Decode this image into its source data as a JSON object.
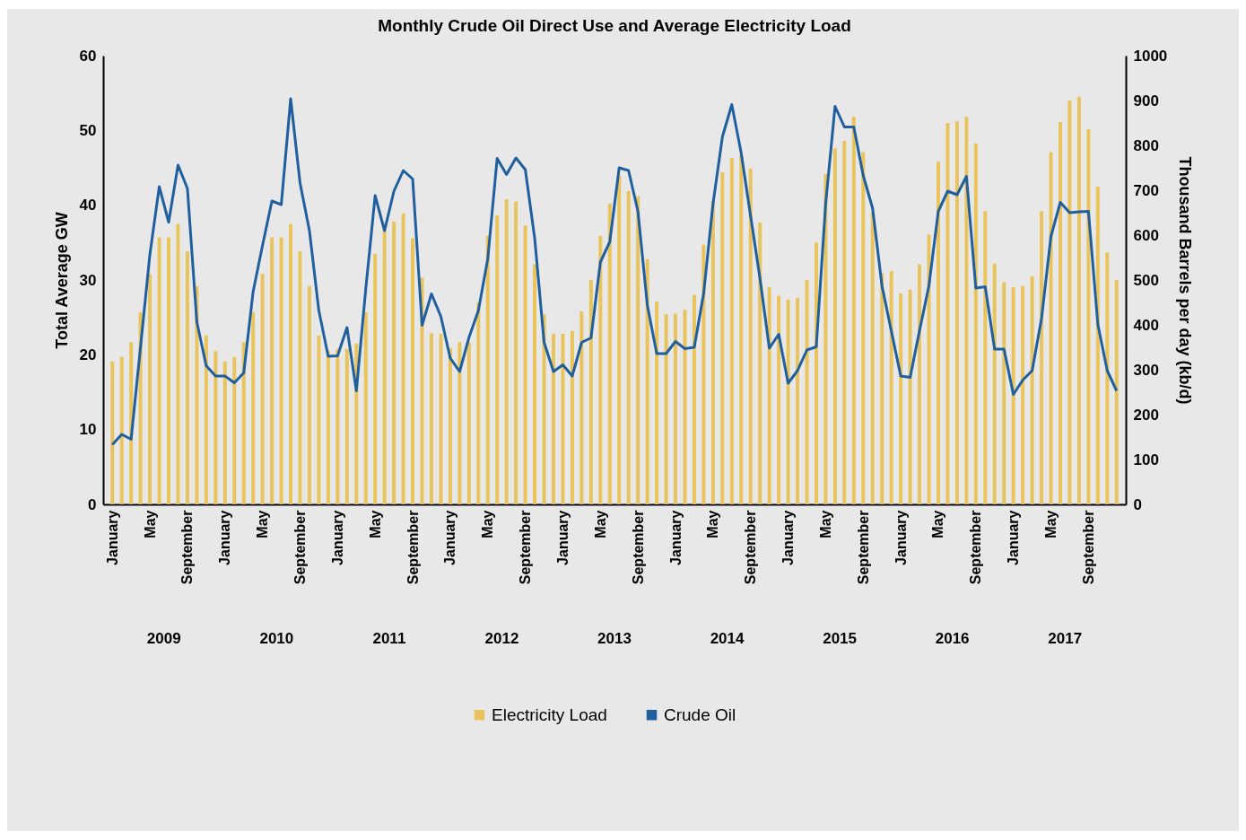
{
  "chart_data": {
    "type": "bar",
    "title": "Monthly Crude Oil Direct Use and Average Electricity Load",
    "ylabel": "Total Average GW",
    "y2label": "Thousand Barrels per day (kb/d)",
    "categories": [
      "January",
      null,
      null,
      null,
      "May",
      null,
      null,
      null,
      "September",
      null,
      null,
      null,
      "January",
      null,
      null,
      null,
      "May",
      null,
      null,
      null,
      "September",
      null,
      null,
      null,
      "January",
      null,
      null,
      null,
      "May",
      null,
      null,
      null,
      "September",
      null,
      null,
      null,
      "January",
      null,
      null,
      null,
      "May",
      null,
      null,
      null,
      "September",
      null,
      null,
      null,
      "January",
      null,
      null,
      null,
      "May",
      null,
      null,
      null,
      "September",
      null,
      null,
      null,
      "January",
      null,
      null,
      null,
      "May",
      null,
      null,
      null,
      "September",
      null,
      null,
      null,
      "January",
      null,
      null,
      null,
      "May",
      null,
      null,
      null,
      "September",
      null,
      null,
      null,
      "January",
      null,
      null,
      null,
      "May",
      null,
      null,
      null,
      "September",
      null,
      null,
      null,
      "January",
      null,
      null,
      null,
      "May",
      null,
      null,
      null,
      "September",
      null,
      null,
      null
    ],
    "series": [
      {
        "name": "Electricity Load",
        "color": "#e9c45c",
        "values": [
          19.1,
          19.7,
          21.7,
          25.7,
          30.8,
          35.7,
          35.7,
          37.5,
          33.8,
          29.2,
          22.6,
          20.5,
          19.1,
          19.7,
          21.7,
          25.7,
          30.8,
          35.7,
          35.7,
          37.5,
          33.8,
          29.2,
          22.6,
          20.5,
          20.8,
          20.8,
          21.5,
          25.7,
          33.5,
          36.6,
          37.8,
          38.9,
          35.6,
          30.3,
          22.9,
          22.8,
          20.9,
          21.7,
          21.7,
          27.0,
          35.9,
          38.6,
          40.8,
          40.5,
          37.3,
          32.1,
          25.4,
          22.8,
          22.8,
          23.2,
          25.8,
          30.0,
          35.9,
          40.2,
          44.0,
          41.9,
          41.2,
          32.8,
          27.1,
          25.4,
          25.5,
          26.0,
          28.0,
          34.7,
          40.5,
          44.4,
          46.3,
          46.7,
          44.9,
          37.7,
          29.0,
          27.9,
          27.4,
          27.6,
          30.0,
          35.0,
          44.2,
          47.6,
          48.6,
          51.8,
          47.1,
          39.0,
          30.9,
          31.2,
          28.2,
          28.7,
          32.1,
          36.1,
          45.8,
          51.0,
          51.2,
          51.8,
          48.3,
          39.2,
          32.2,
          29.7,
          29.0,
          29.2,
          30.5,
          39.2,
          47.1,
          51.1,
          54.0,
          54.5,
          50.2,
          42.5,
          33.7,
          30.0
        ]
      },
      {
        "name": "Crude Oil",
        "type": "line",
        "axis": "y2",
        "color": "#1f5f9e",
        "values": [
          133,
          156,
          145,
          350,
          557,
          708,
          629,
          756,
          704,
          407,
          309,
          286,
          286,
          271,
          293,
          474,
          577,
          676,
          668,
          904,
          716,
          610,
          432,
          330,
          331,
          394,
          253,
          480,
          688,
          610,
          698,
          744,
          725,
          399,
          469,
          419,
          326,
          296,
          372,
          432,
          547,
          771,
          735,
          772,
          746,
          593,
          361,
          296,
          311,
          286,
          361,
          371,
          540,
          585,
          750,
          744,
          653,
          444,
          336,
          336,
          363,
          347,
          350,
          470,
          670,
          819,
          891,
          783,
          643,
          504,
          348,
          379,
          270,
          298,
          344,
          351,
          670,
          887,
          841,
          841,
          733,
          660,
          487,
          386,
          286,
          283,
          387,
          487,
          653,
          698,
          690,
          731,
          482,
          485,
          346,
          346,
          245,
          277,
          298,
          414,
          597,
          673,
          650,
          652,
          653,
          401,
          298,
          253
        ]
      }
    ],
    "ylim": [
      0,
      60
    ],
    "yticks": [
      0,
      10,
      20,
      30,
      40,
      50,
      60
    ],
    "y2lim": [
      0,
      1000
    ],
    "y2ticks": [
      0,
      100,
      200,
      300,
      400,
      500,
      600,
      700,
      800,
      900,
      1000
    ],
    "annotations": [
      "2009",
      "2010",
      "2011",
      "2012",
      "2013",
      "2014",
      "2015",
      "2016",
      "2017"
    ],
    "grid": false,
    "legend": "bottom",
    "marker": "none",
    "line_style": "solid"
  }
}
